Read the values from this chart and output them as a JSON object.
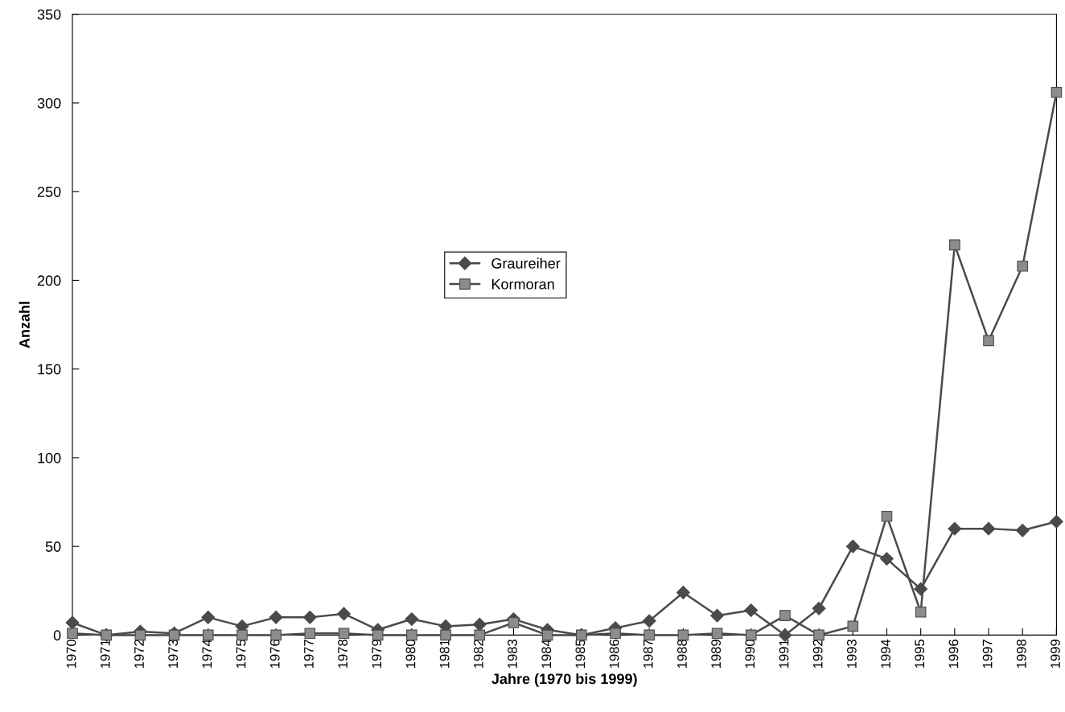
{
  "chart_data": {
    "type": "line",
    "xlabel": "Jahre (1970 bis 1999)",
    "ylabel": "Anzahl",
    "categories": [
      "1970",
      "1971",
      "1972",
      "1973",
      "1974",
      "1975",
      "1976",
      "1977",
      "1978",
      "1979",
      "1980",
      "1981",
      "1982",
      "1983",
      "1984",
      "1985",
      "1986",
      "1987",
      "1988",
      "1989",
      "1990",
      "1991",
      "1992",
      "1993",
      "1994",
      "1995",
      "1996",
      "1997",
      "1998",
      "1999"
    ],
    "series": [
      {
        "name": "Graureiher",
        "color": "#4a4a4a",
        "marker": "diamond",
        "values": [
          7,
          0,
          2,
          1,
          10,
          5,
          10,
          10,
          12,
          3,
          9,
          5,
          6,
          9,
          3,
          0,
          4,
          8,
          24,
          11,
          14,
          0,
          15,
          50,
          43,
          26,
          60,
          60,
          59,
          64
        ]
      },
      {
        "name": "Kormoran",
        "color": "#8c8c8c",
        "marker": "square",
        "values": [
          1,
          0,
          0,
          0,
          0,
          0,
          0,
          1,
          1,
          0,
          0,
          0,
          0,
          7,
          0,
          0,
          1,
          0,
          0,
          1,
          0,
          11,
          0,
          5,
          67,
          13,
          220,
          166,
          208,
          306
        ]
      }
    ],
    "ylim": [
      0,
      350
    ],
    "yticks": [
      0,
      50,
      100,
      150,
      200,
      250,
      300,
      350
    ],
    "grid": false,
    "legend": "center"
  }
}
